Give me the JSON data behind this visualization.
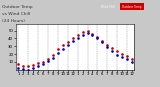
{
  "title_left": "Outdoor Temp",
  "title_right": "vs Wind Chill",
  "title_line2": "(24 Hours)",
  "title_fontsize": 3.2,
  "bg_color": "#c8c8c8",
  "plot_bg_color": "#ffffff",
  "grid_color": "#888888",
  "ylim": [
    0,
    58
  ],
  "yticks": [
    10,
    20,
    30,
    40,
    50
  ],
  "outdoor_temp": {
    "x": [
      0,
      1,
      2,
      3,
      4,
      5,
      6,
      7,
      8,
      9,
      10,
      11,
      12,
      13,
      14,
      15,
      16,
      17,
      18,
      19,
      20,
      21,
      22,
      23
    ],
    "y": [
      7,
      5,
      4,
      6,
      8,
      10,
      14,
      19,
      26,
      31,
      36,
      40,
      44,
      48,
      49,
      46,
      42,
      37,
      32,
      28,
      24,
      20,
      17,
      14
    ],
    "color": "#cc0000",
    "marker": ".",
    "markersize": 1.8,
    "label": "Outdoor Temp"
  },
  "wind_chill": {
    "x": [
      0,
      1,
      2,
      3,
      4,
      5,
      6,
      7,
      8,
      9,
      10,
      11,
      12,
      13,
      14,
      15,
      16,
      17,
      18,
      19,
      20,
      21,
      22,
      23
    ],
    "y": [
      2,
      1,
      0,
      2,
      4,
      7,
      11,
      15,
      21,
      27,
      32,
      37,
      41,
      45,
      47,
      44,
      40,
      35,
      29,
      24,
      19,
      16,
      13,
      10
    ],
    "color": "#0000cc",
    "marker": ".",
    "markersize": 1.8,
    "label": "Wind Chill"
  },
  "legend_blue_color": "#0000bb",
  "legend_red_color": "#cc0000",
  "tick_fontsize": 2.8,
  "xlabel_fontsize": 2.8,
  "x_tick_positions": [
    0,
    1,
    2,
    3,
    4,
    5,
    6,
    7,
    8,
    9,
    10,
    11,
    12,
    13,
    14,
    15,
    16,
    17,
    18,
    19,
    20,
    21,
    22,
    23
  ],
  "x_tick_labels": [
    "1",
    "2",
    "3",
    "4",
    "5",
    "6",
    "7",
    "8",
    "9",
    "10",
    "11",
    "12",
    "1",
    "2",
    "3",
    "4",
    "5",
    "6",
    "7",
    "8",
    "9",
    "10",
    "11",
    "12"
  ]
}
